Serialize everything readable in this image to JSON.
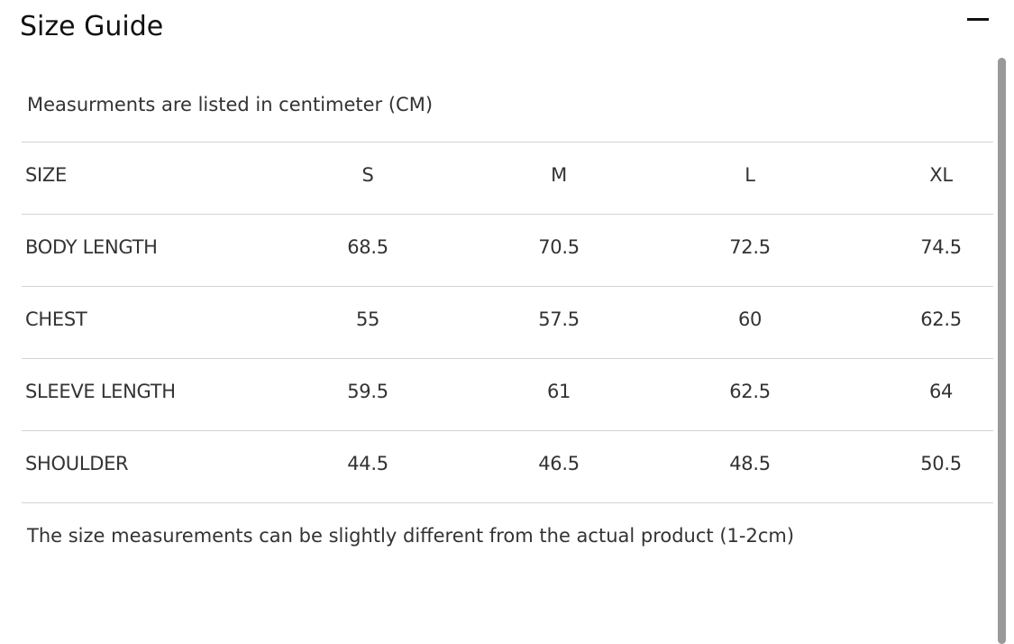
{
  "header": {
    "title": "Size Guide"
  },
  "note": "Measurments are listed in centimeter (CM)",
  "table": {
    "columns": [
      "SIZE",
      "S",
      "M",
      "L",
      "XL"
    ],
    "rows": [
      [
        "BODY LENGTH",
        "68.5",
        "70.5",
        "72.5",
        "74.5"
      ],
      [
        "CHEST",
        "55",
        "57.5",
        "60",
        "62.5"
      ],
      [
        "SLEEVE LENGTH",
        "59.5",
        "61",
        "62.5",
        "64"
      ],
      [
        "SHOULDER",
        "44.5",
        "46.5",
        "48.5",
        "50.5"
      ]
    ]
  },
  "footnote": "The size measurements can be slightly different from the actual product (1-2cm)"
}
